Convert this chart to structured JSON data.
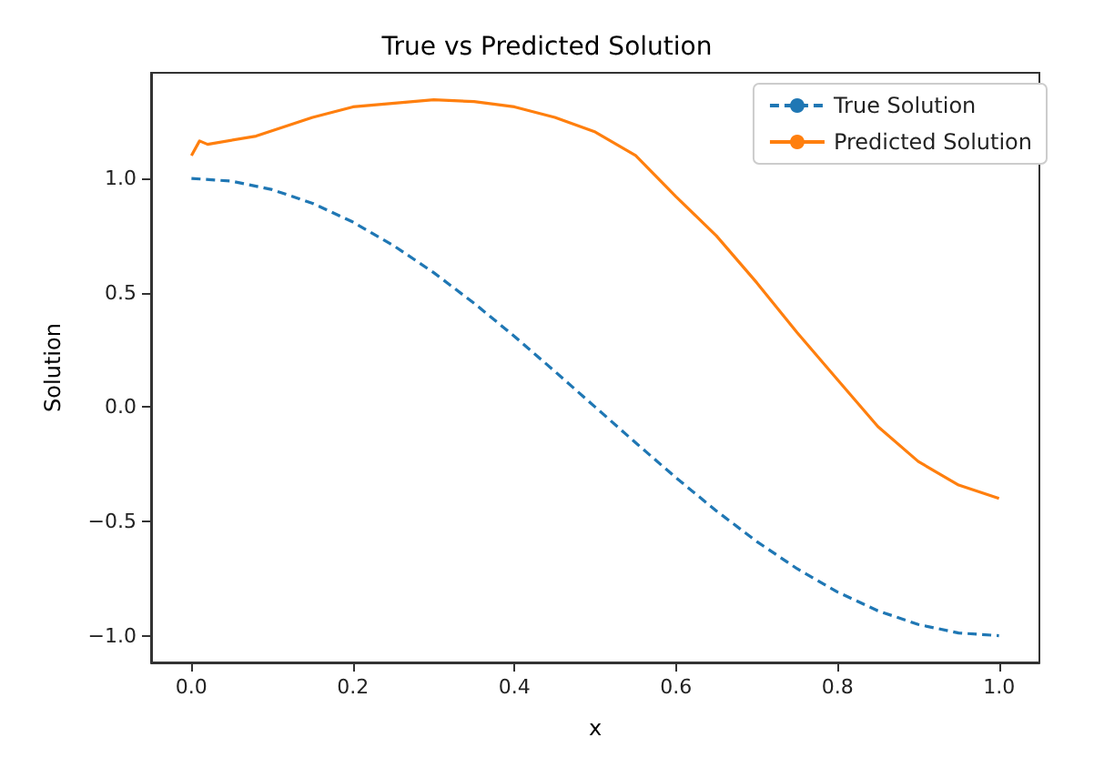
{
  "chart_data": {
    "type": "line",
    "title": "True vs Predicted Solution",
    "xlabel": "x",
    "ylabel": "Solution",
    "xlim": [
      -0.05,
      1.05
    ],
    "xticks": [
      {
        "value": 0,
        "label": "0.0"
      },
      {
        "value": 0.2,
        "label": "0.2"
      },
      {
        "value": 0.4,
        "label": "0.4"
      },
      {
        "value": 0.6,
        "label": "0.6"
      },
      {
        "value": 0.8,
        "label": "0.8"
      },
      {
        "value": 1,
        "label": "1.0"
      }
    ],
    "ylim": [
      -1.117,
      1.462
    ],
    "yticks": [
      {
        "value": -1,
        "label": "−1.0"
      },
      {
        "value": -0.5,
        "label": "−0.5"
      },
      {
        "value": 0,
        "label": "0.0"
      },
      {
        "value": 0.5,
        "label": "0.5"
      },
      {
        "value": 1,
        "label": "1.0"
      }
    ],
    "grid": false,
    "legend": "top right",
    "marker": "none",
    "series": [
      {
        "name": "True Solution",
        "color": "#1f77b4",
        "line_style": "dashed",
        "x": [
          0,
          0.05,
          0.1,
          0.15,
          0.2,
          0.25,
          0.3,
          0.35,
          0.4,
          0.45,
          0.5,
          0.55,
          0.6,
          0.65,
          0.7,
          0.75,
          0.8,
          0.85,
          0.9,
          0.95,
          1
        ],
        "values": [
          1,
          0.988,
          0.951,
          0.891,
          0.809,
          0.707,
          0.588,
          0.454,
          0.309,
          0.156,
          0,
          -0.156,
          -0.309,
          -0.454,
          -0.588,
          -0.707,
          -0.809,
          -0.891,
          -0.951,
          -0.988,
          -1
        ]
      },
      {
        "name": "Predicted Solution",
        "color": "#ff7f0e",
        "line_style": "solid",
        "x": [
          0,
          0.01,
          0.02,
          0.08,
          0.15,
          0.2,
          0.3,
          0.35,
          0.4,
          0.45,
          0.5,
          0.55,
          0.6,
          0.65,
          0.7,
          0.75,
          0.8,
          0.85,
          0.9,
          0.95,
          1
        ],
        "values": [
          1.1,
          1.164,
          1.149,
          1.185,
          1.267,
          1.313,
          1.344,
          1.336,
          1.313,
          1.267,
          1.203,
          1.1,
          0.92,
          0.749,
          0.544,
          0.326,
          0.12,
          -0.085,
          -0.238,
          -0.341,
          -0.4
        ]
      }
    ]
  }
}
